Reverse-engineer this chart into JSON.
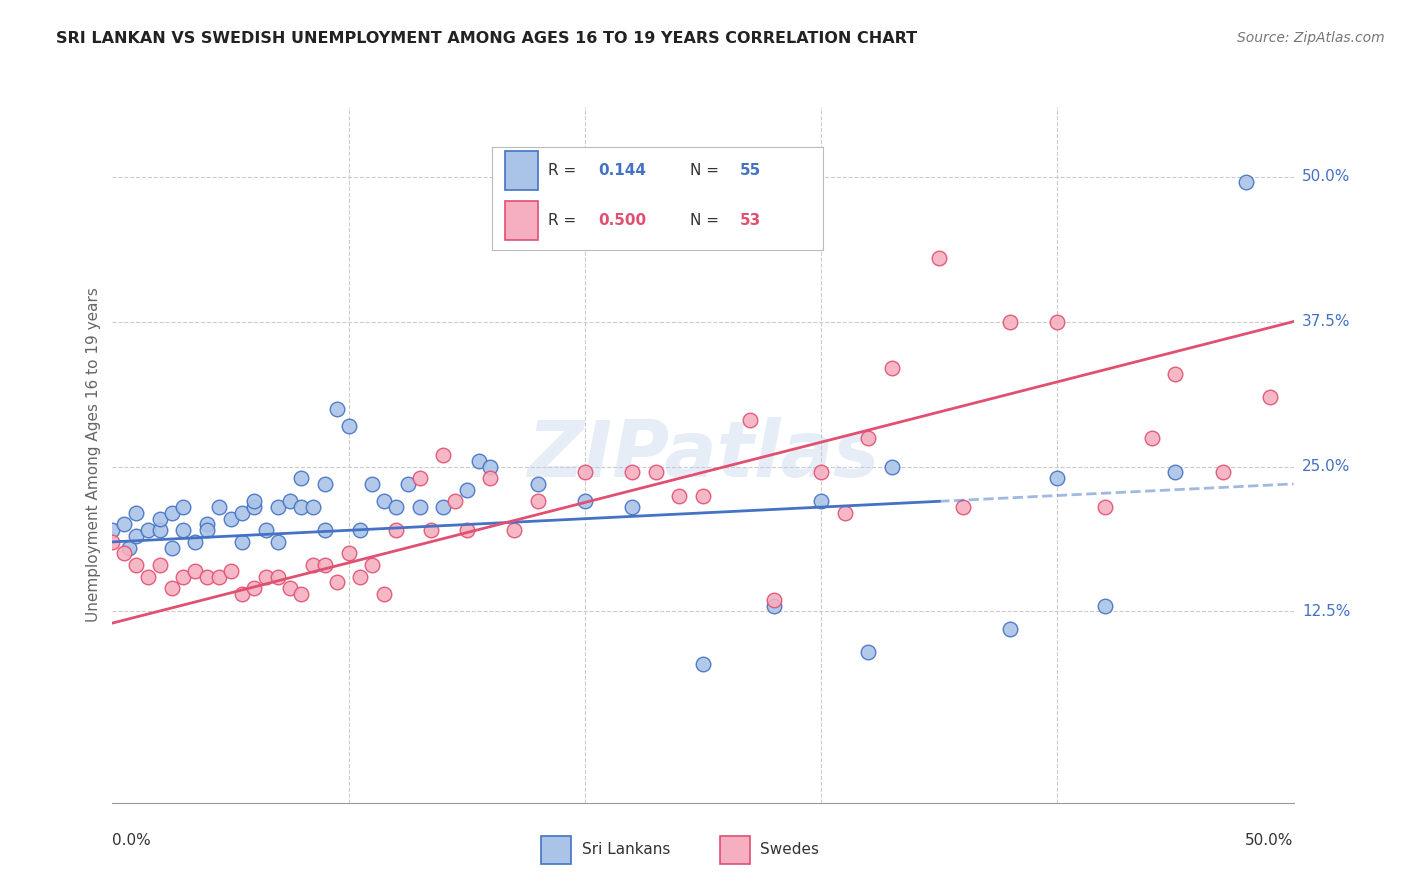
{
  "title": "SRI LANKAN VS SWEDISH UNEMPLOYMENT AMONG AGES 16 TO 19 YEARS CORRELATION CHART",
  "source": "Source: ZipAtlas.com",
  "ylabel": "Unemployment Among Ages 16 to 19 years",
  "xlim": [
    0.0,
    0.5
  ],
  "ylim": [
    -0.04,
    0.56
  ],
  "sl_color": "#aac4e8",
  "sw_color": "#f5afc0",
  "sl_line_color": "#4472c4",
  "sw_line_color": "#e05070",
  "sl_R": 0.144,
  "sl_N": 55,
  "sw_R": 0.5,
  "sw_N": 53,
  "watermark": "ZIPatlas",
  "background_color": "#ffffff",
  "grid_color": "#cccccc",
  "ytick_vals": [
    0.125,
    0.25,
    0.375,
    0.5
  ],
  "ytick_labels": [
    "12.5%",
    "25.0%",
    "37.5%",
    "50.0%"
  ],
  "sl_line_start_y": 0.185,
  "sl_line_end_y": 0.235,
  "sw_line_start_y": 0.115,
  "sw_line_end_y": 0.375,
  "sl_points_x": [
    0.0,
    0.005,
    0.007,
    0.01,
    0.01,
    0.015,
    0.02,
    0.02,
    0.025,
    0.025,
    0.03,
    0.03,
    0.035,
    0.04,
    0.04,
    0.045,
    0.05,
    0.055,
    0.055,
    0.06,
    0.06,
    0.065,
    0.07,
    0.07,
    0.075,
    0.08,
    0.08,
    0.085,
    0.09,
    0.09,
    0.095,
    0.1,
    0.105,
    0.11,
    0.115,
    0.12,
    0.125,
    0.13,
    0.14,
    0.15,
    0.155,
    0.16,
    0.18,
    0.2,
    0.22,
    0.25,
    0.28,
    0.3,
    0.32,
    0.33,
    0.38,
    0.4,
    0.42,
    0.45,
    0.48
  ],
  "sl_points_y": [
    0.195,
    0.2,
    0.18,
    0.21,
    0.19,
    0.195,
    0.195,
    0.205,
    0.21,
    0.18,
    0.195,
    0.215,
    0.185,
    0.2,
    0.195,
    0.215,
    0.205,
    0.185,
    0.21,
    0.215,
    0.22,
    0.195,
    0.215,
    0.185,
    0.22,
    0.215,
    0.24,
    0.215,
    0.235,
    0.195,
    0.3,
    0.285,
    0.195,
    0.235,
    0.22,
    0.215,
    0.235,
    0.215,
    0.215,
    0.23,
    0.255,
    0.25,
    0.235,
    0.22,
    0.215,
    0.08,
    0.13,
    0.22,
    0.09,
    0.25,
    0.11,
    0.24,
    0.13,
    0.245,
    0.495
  ],
  "sw_points_x": [
    0.0,
    0.005,
    0.01,
    0.015,
    0.02,
    0.025,
    0.03,
    0.035,
    0.04,
    0.045,
    0.05,
    0.055,
    0.06,
    0.065,
    0.07,
    0.075,
    0.08,
    0.085,
    0.09,
    0.095,
    0.1,
    0.105,
    0.11,
    0.115,
    0.12,
    0.13,
    0.135,
    0.14,
    0.145,
    0.15,
    0.16,
    0.17,
    0.18,
    0.2,
    0.22,
    0.23,
    0.24,
    0.25,
    0.27,
    0.28,
    0.3,
    0.31,
    0.32,
    0.33,
    0.35,
    0.36,
    0.38,
    0.4,
    0.42,
    0.44,
    0.45,
    0.47,
    0.49
  ],
  "sw_points_y": [
    0.185,
    0.175,
    0.165,
    0.155,
    0.165,
    0.145,
    0.155,
    0.16,
    0.155,
    0.155,
    0.16,
    0.14,
    0.145,
    0.155,
    0.155,
    0.145,
    0.14,
    0.165,
    0.165,
    0.15,
    0.175,
    0.155,
    0.165,
    0.14,
    0.195,
    0.24,
    0.195,
    0.26,
    0.22,
    0.195,
    0.24,
    0.195,
    0.22,
    0.245,
    0.245,
    0.245,
    0.225,
    0.225,
    0.29,
    0.135,
    0.245,
    0.21,
    0.275,
    0.335,
    0.43,
    0.215,
    0.375,
    0.375,
    0.215,
    0.275,
    0.33,
    0.245,
    0.31
  ]
}
